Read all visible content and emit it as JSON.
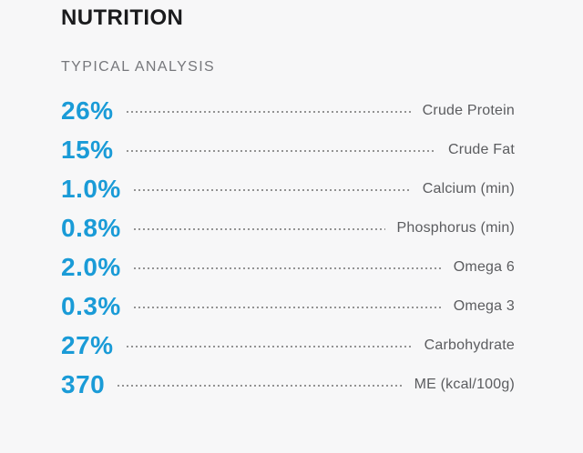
{
  "panel": {
    "title": "NUTRITION",
    "subtitle": "TYPICAL ANALYSIS"
  },
  "colors": {
    "background": "#f7f7f8",
    "accent": "#1a9bd7",
    "title": "#1a1b1d",
    "subtitle": "#76777b",
    "label": "#5b5c5f",
    "leader": "#939393"
  },
  "analysis": {
    "rows": [
      {
        "value": "26%",
        "label": "Crude Protein"
      },
      {
        "value": "15%",
        "label": "Crude Fat"
      },
      {
        "value": "1.0%",
        "label": "Calcium (min)"
      },
      {
        "value": "0.8%",
        "label": "Phosphorus (min)"
      },
      {
        "value": "2.0%",
        "label": "Omega 6"
      },
      {
        "value": "0.3%",
        "label": "Omega 3"
      },
      {
        "value": "27%",
        "label": "Carbohydrate"
      },
      {
        "value": "370",
        "label": "ME (kcal/100g)"
      }
    ]
  },
  "chart_data": {
    "type": "table",
    "title": "NUTRITION",
    "subtitle": "TYPICAL ANALYSIS",
    "columns": [
      "value",
      "nutrient"
    ],
    "rows": [
      [
        "26%",
        "Crude Protein"
      ],
      [
        "15%",
        "Crude Fat"
      ],
      [
        "1.0%",
        "Calcium (min)"
      ],
      [
        "0.8%",
        "Phosphorus (min)"
      ],
      [
        "2.0%",
        "Omega 6"
      ],
      [
        "0.3%",
        "Omega 3"
      ],
      [
        "27%",
        "Carbohydrate"
      ],
      [
        "370",
        "ME (kcal/100g)"
      ]
    ]
  }
}
